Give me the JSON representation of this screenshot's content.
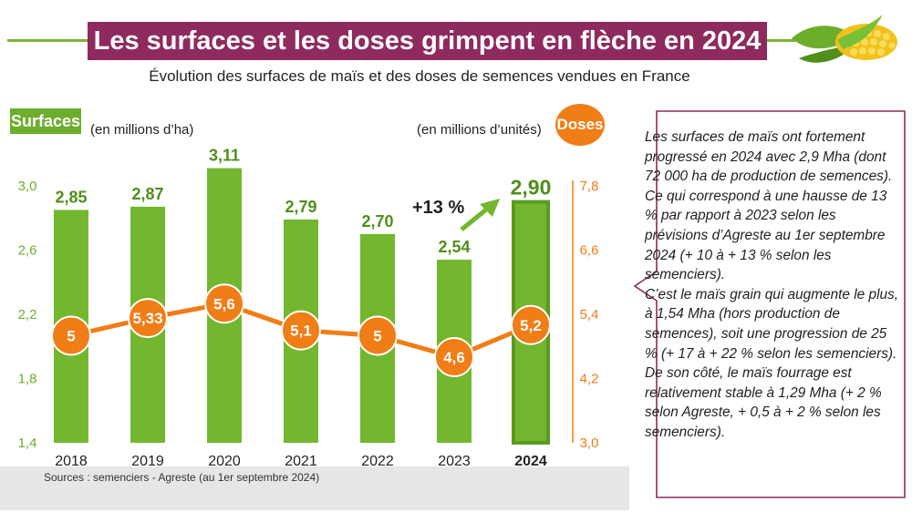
{
  "title": "Les surfaces et les doses grimpent en flèche en 2024",
  "subtitle": "Évolution des surfaces de maïs et des doses de semences vendues en France",
  "left_axis_tag": "Surfaces",
  "left_unit": "(en millions d’ha)",
  "right_axis_tag": "Doses",
  "right_unit": "(en millions d’unités)",
  "growth_label": "+13 %",
  "sources": "Sources : semenciers - Agreste (au 1er septembre 2024)",
  "note": [
    "Les surfaces de maïs ont fortement progressé en 2024 avec 2,9 Mha (dont 72 000 ha de production de semences). Ce qui correspond à une hausse de 13 % par rapport à 2023 selon les prévisions d’Agreste au 1er septembre 2024 (+ 10 à + 13 % selon les semenciers).",
    "C’est le maïs grain qui augmente le plus, à 1,54 Mha (hors production de semences), soit une progression de 25 % (+ 17 à + 22 % selon les semenciers). De son côté, le maïs fourrage est relativement stable à 1,29 Mha (+ 2 % selon Agreste, + 0,5 à + 2 % selon les semenciers)."
  ],
  "icons": {
    "decoration": "corn-cob-icon",
    "trend": "up-arrow-icon"
  },
  "colors": {
    "bar": "#72b72f",
    "bar_highlight": "#5a9a1f",
    "doses": "#f07d16",
    "title_bg": "#8e2a5e",
    "left_axis_text": "#6cae2c",
    "right_axis_text": "#f07d16"
  },
  "chart_data": {
    "type": "bar",
    "categories": [
      "2018",
      "2019",
      "2020",
      "2021",
      "2022",
      "2023",
      "2024"
    ],
    "series": [
      {
        "name": "Surfaces",
        "axis": "left",
        "values": [
          2.85,
          2.87,
          3.11,
          2.79,
          2.7,
          2.54,
          2.9
        ],
        "labels": [
          "2,85",
          "2,87",
          "3,11",
          "2,79",
          "2,70",
          "2,54",
          "2,90"
        ]
      },
      {
        "name": "Doses",
        "axis": "right",
        "type": "line",
        "values": [
          5,
          5.33,
          5.6,
          5.1,
          5,
          4.6,
          5.2
        ],
        "labels": [
          "5",
          "5,33",
          "5,6",
          "5,1",
          "5",
          "4,6",
          "5,2"
        ]
      }
    ],
    "y_left": {
      "min": 1.4,
      "max": 3.0,
      "ticks": [
        "1,4",
        "1,8",
        "2,2",
        "2,6",
        "3,0"
      ],
      "tick_values": [
        1.4,
        1.8,
        2.2,
        2.6,
        3.0
      ]
    },
    "y_right": {
      "min": 3.0,
      "max": 7.8,
      "ticks": [
        "3,0",
        "4,2",
        "5,4",
        "6,6",
        "7,8"
      ],
      "tick_values": [
        3.0,
        4.2,
        5.4,
        6.6,
        7.8
      ]
    },
    "highlight_category": "2024",
    "grid": false,
    "legend": "none"
  }
}
